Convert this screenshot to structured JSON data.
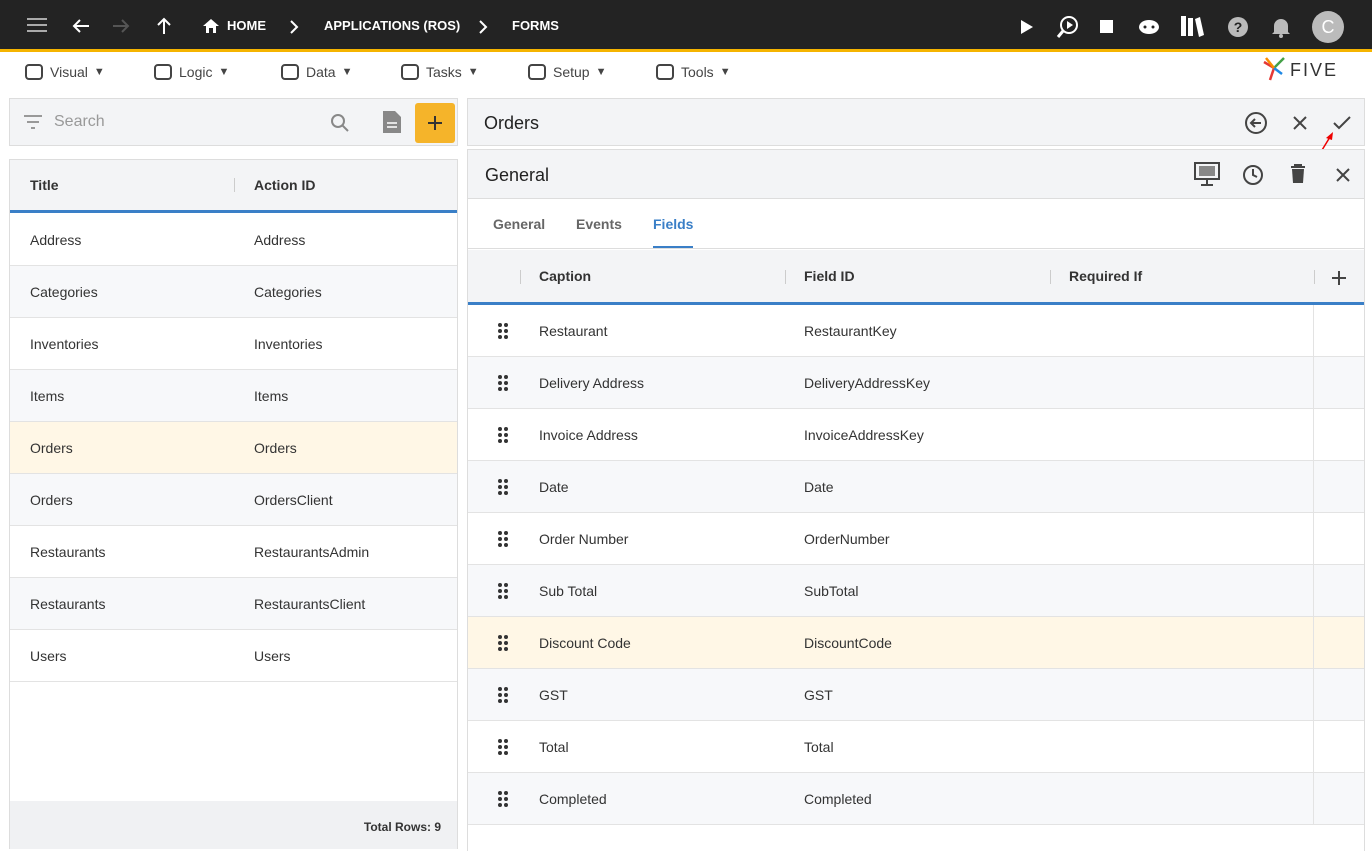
{
  "topbar": {
    "breadcrumbs": [
      "HOME",
      "APPLICATIONS (ROS)",
      "FORMS"
    ],
    "avatar": "C"
  },
  "menu": [
    "Visual",
    "Logic",
    "Data",
    "Tasks",
    "Setup",
    "Tools"
  ],
  "logo": "FIVE",
  "list": {
    "search": "Search",
    "columns": [
      "Title",
      "Action ID"
    ],
    "rows": [
      [
        "Address",
        "Address"
      ],
      [
        "Categories",
        "Categories"
      ],
      [
        "Inventories",
        "Inventories"
      ],
      [
        "Items",
        "Items"
      ],
      [
        "Orders",
        "Orders"
      ],
      [
        "Orders",
        "OrdersClient"
      ],
      [
        "Restaurants",
        "RestaurantsAdmin"
      ],
      [
        "Restaurants",
        "RestaurantsClient"
      ],
      [
        "Users",
        "Users"
      ]
    ],
    "selected": 4,
    "footer": "Total Rows: 9"
  },
  "form": {
    "title": "Orders",
    "section": "General",
    "tabs": [
      "General",
      "Events",
      "Fields"
    ],
    "active_tab": 2,
    "columns": [
      "Caption",
      "Field ID",
      "Required If"
    ],
    "rows": [
      [
        "Restaurant",
        "RestaurantKey"
      ],
      [
        "Delivery Address",
        "DeliveryAddressKey"
      ],
      [
        "Invoice Address",
        "InvoiceAddressKey"
      ],
      [
        "Date",
        "Date"
      ],
      [
        "Order Number",
        "OrderNumber"
      ],
      [
        "Sub Total",
        "SubTotal"
      ],
      [
        "Discount Code",
        "DiscountCode"
      ],
      [
        "GST",
        "GST"
      ],
      [
        "Total",
        "Total"
      ],
      [
        "Completed",
        "Completed"
      ]
    ],
    "selected": 6
  }
}
